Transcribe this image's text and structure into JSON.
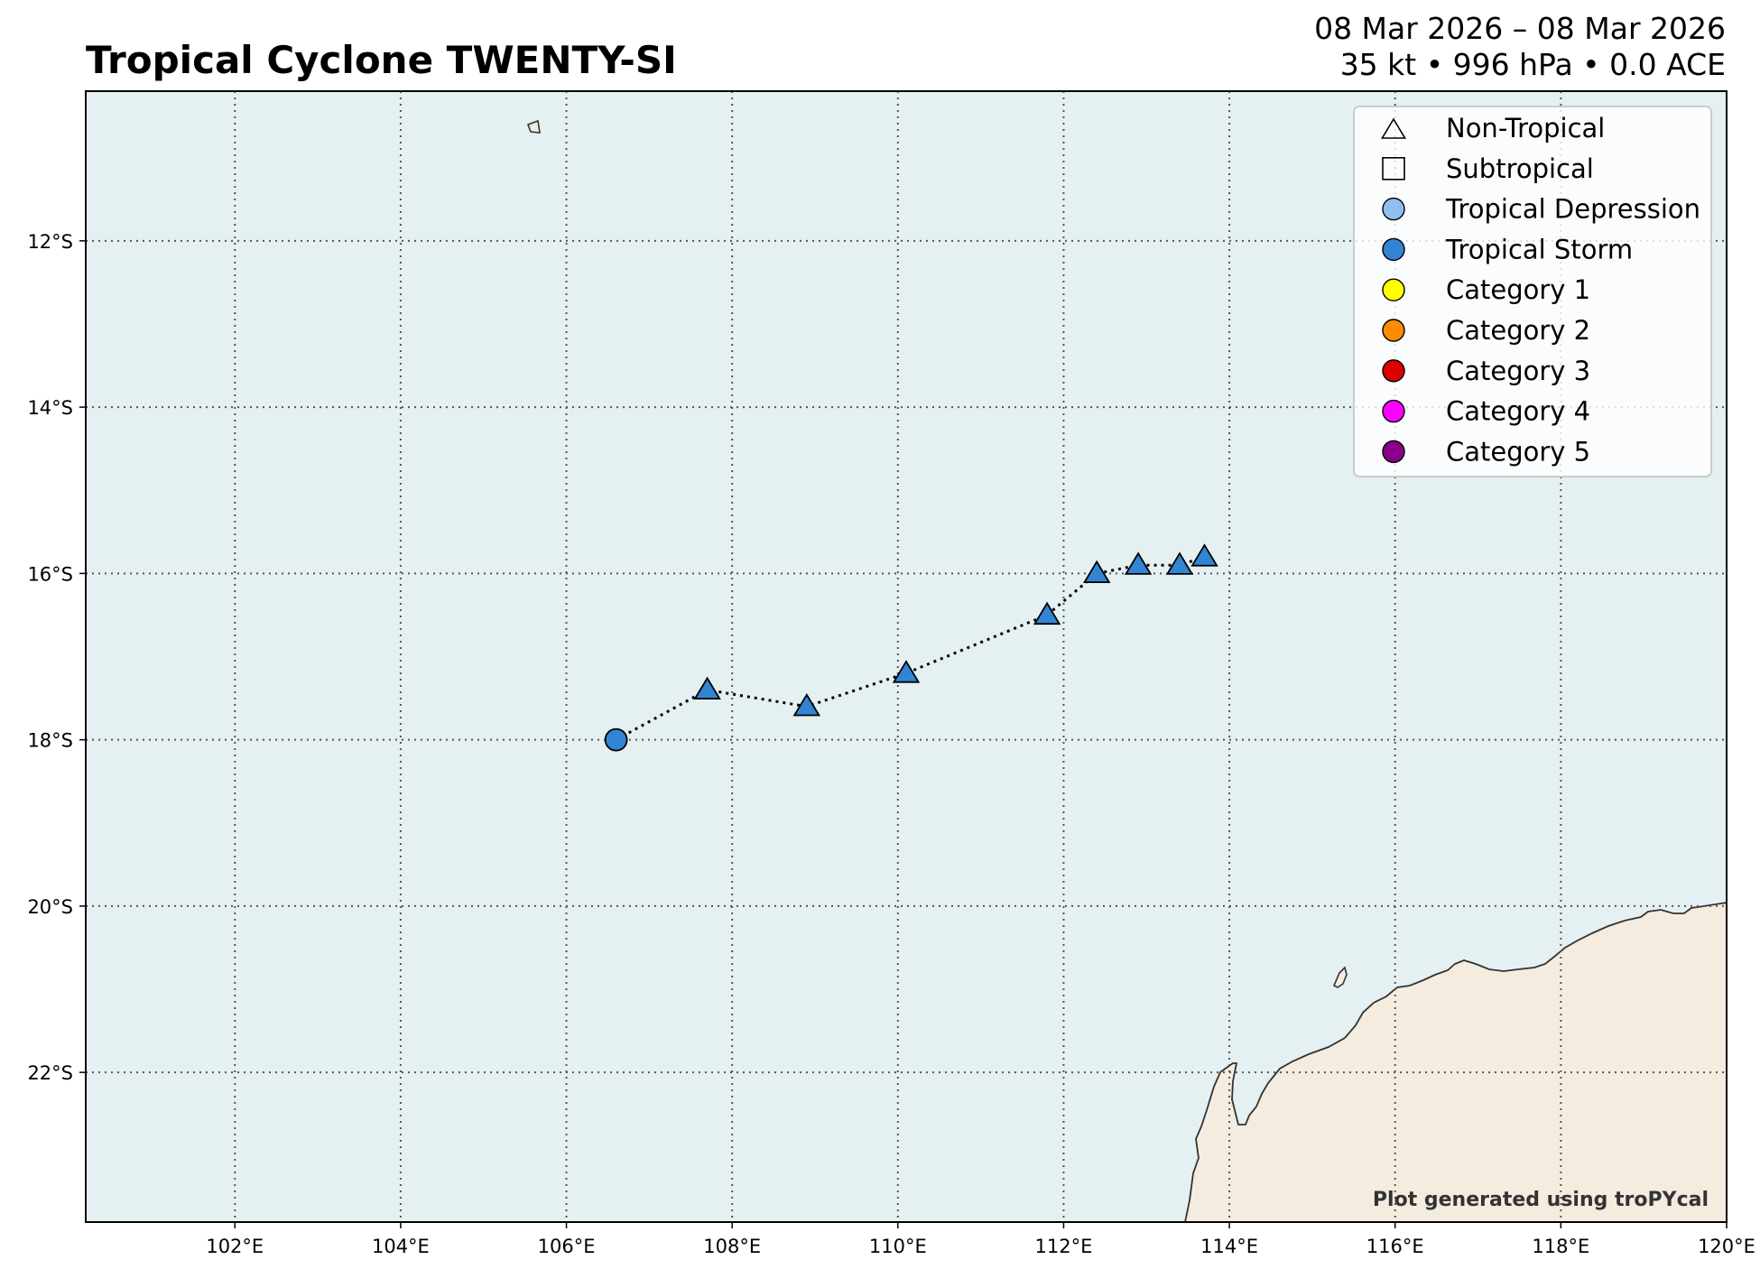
{
  "title": "Tropical Cyclone TWENTY-SI",
  "subtitle": {
    "dates": "08 Mar 2026 – 08 Mar 2026",
    "stats": "35 kt • 996 hPa • 0.0 ACE"
  },
  "credit": "Plot generated using troPYcal",
  "colors": {
    "ocean": "#e4f0f2",
    "land": "#f5ece0",
    "coastline": "#333333",
    "grid": "#555555",
    "track": "#000000"
  },
  "map": {
    "lon_range": [
      100.2,
      120.0
    ],
    "lat_range": [
      -10.2,
      -23.8
    ],
    "lon_ticks": [
      {
        "value": 102,
        "label": "102°E"
      },
      {
        "value": 104,
        "label": "104°E"
      },
      {
        "value": 106,
        "label": "106°E"
      },
      {
        "value": 108,
        "label": "108°E"
      },
      {
        "value": 110,
        "label": "110°E"
      },
      {
        "value": 112,
        "label": "112°E"
      },
      {
        "value": 114,
        "label": "114°E"
      },
      {
        "value": 116,
        "label": "116°E"
      },
      {
        "value": 118,
        "label": "118°E"
      },
      {
        "value": 120,
        "label": "120°E"
      }
    ],
    "lat_ticks": [
      {
        "value": -12,
        "label": "12°S"
      },
      {
        "value": -14,
        "label": "14°S"
      },
      {
        "value": -16,
        "label": "16°S"
      },
      {
        "value": -18,
        "label": "18°S"
      },
      {
        "value": -20,
        "label": "20°S"
      },
      {
        "value": -22,
        "label": "22°S"
      }
    ]
  },
  "track": [
    {
      "lon": 106.6,
      "lat": -18.0,
      "type": "tropical-storm"
    },
    {
      "lon": 107.7,
      "lat": -17.4,
      "type": "non-tropical"
    },
    {
      "lon": 108.9,
      "lat": -17.6,
      "type": "non-tropical"
    },
    {
      "lon": 110.1,
      "lat": -17.2,
      "type": "non-tropical"
    },
    {
      "lon": 111.8,
      "lat": -16.5,
      "type": "non-tropical"
    },
    {
      "lon": 112.4,
      "lat": -16.0,
      "type": "non-tropical"
    },
    {
      "lon": 112.9,
      "lat": -15.9,
      "type": "non-tropical"
    },
    {
      "lon": 113.4,
      "lat": -15.9,
      "type": "non-tropical"
    },
    {
      "lon": 113.7,
      "lat": -15.8,
      "type": "non-tropical"
    }
  ],
  "legend": [
    {
      "label": "Non-Tropical",
      "shape": "triangle",
      "color": "none"
    },
    {
      "label": "Subtropical",
      "shape": "square",
      "color": "none"
    },
    {
      "label": "Tropical Depression",
      "shape": "circle",
      "color": "#8fbfef"
    },
    {
      "label": "Tropical Storm",
      "shape": "circle",
      "color": "#3185d3"
    },
    {
      "label": "Category 1",
      "shape": "circle",
      "color": "#ffff00"
    },
    {
      "label": "Category 2",
      "shape": "circle",
      "color": "#ff8c00"
    },
    {
      "label": "Category 3",
      "shape": "circle",
      "color": "#dd0000"
    },
    {
      "label": "Category 4",
      "shape": "circle",
      "color": "#ff00ff"
    },
    {
      "label": "Category 5",
      "shape": "circle",
      "color": "#8b008b"
    }
  ],
  "storm_fill": "#3185d3"
}
